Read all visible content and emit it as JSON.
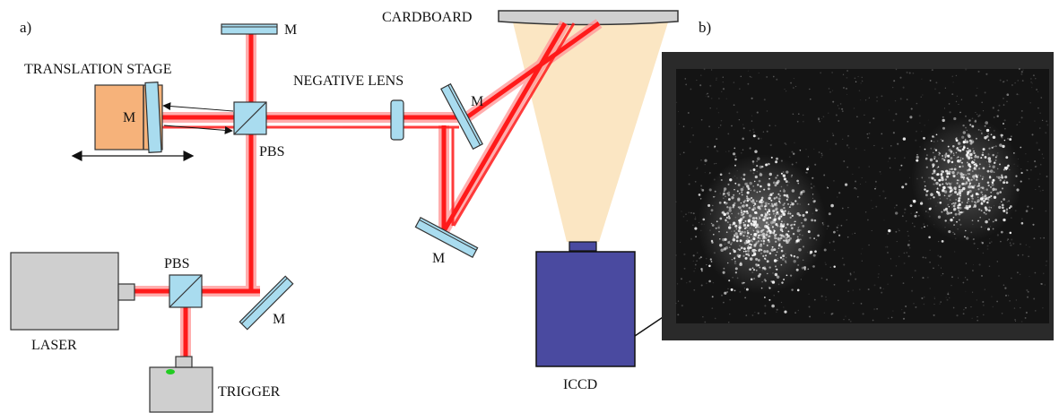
{
  "panels": {
    "a": "a)",
    "b": "b)"
  },
  "labels": {
    "cardboard": "CARDBOARD",
    "translation_stage": "TRANSLATION STAGE",
    "negative_lens": "NEGATIVE LENS",
    "mirror": "M",
    "pbs": "PBS",
    "laser": "LASER",
    "trigger": "TRIGGER",
    "iccd": "ICCD"
  },
  "colors": {
    "beam": "#ff1a1a",
    "beam_glow": "#ff9a9a",
    "mirror_glass": "#a9dcef",
    "cube": "#a9dcef",
    "stage": "#f6b27a",
    "device_gray": "#cfcfcf",
    "iccd": "#4a4aa0",
    "light_cone": "#fbe6c3",
    "speckle_frame": "#2a2a2a"
  }
}
